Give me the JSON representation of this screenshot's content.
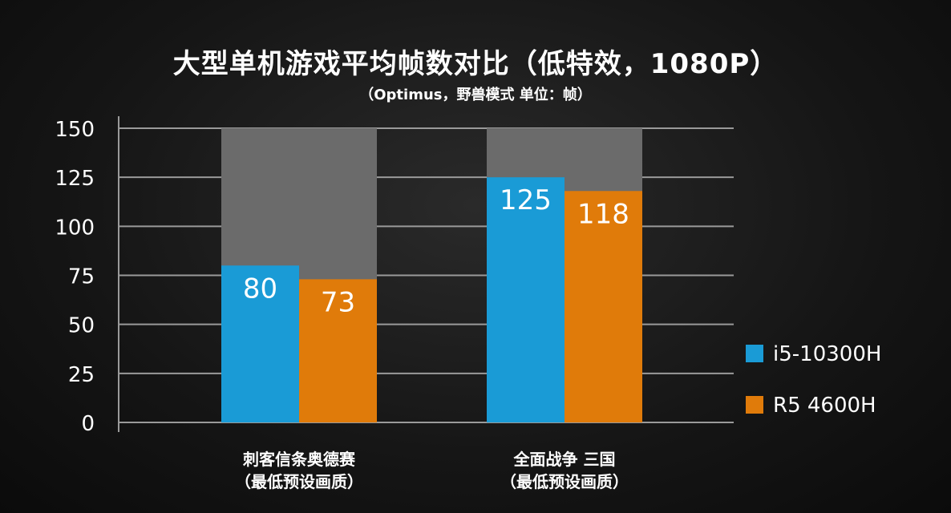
{
  "chart_data": {
    "type": "bar",
    "title": "大型单机游戏平均帧数对比（低特效，1080P）",
    "subtitle": "（Optimus，野兽模式  单位：帧）",
    "categories": [
      "刺客信条奥德赛\n（最低预设画质）",
      "全面战争 三国\n（最低预设画质）"
    ],
    "series": [
      {
        "name": "i5-10300H",
        "color": "#1a9bd6",
        "values": [
          80,
          125
        ]
      },
      {
        "name": "R5 4600H",
        "color": "#e07b0a",
        "values": [
          73,
          118
        ]
      }
    ],
    "yticks": [
      0,
      25,
      50,
      75,
      100,
      125,
      150
    ],
    "ylim": [
      0,
      150
    ],
    "grid": true,
    "legend": "right",
    "background_bar_color": "#6b6b6b",
    "axis_color": "#9a9a9a"
  }
}
